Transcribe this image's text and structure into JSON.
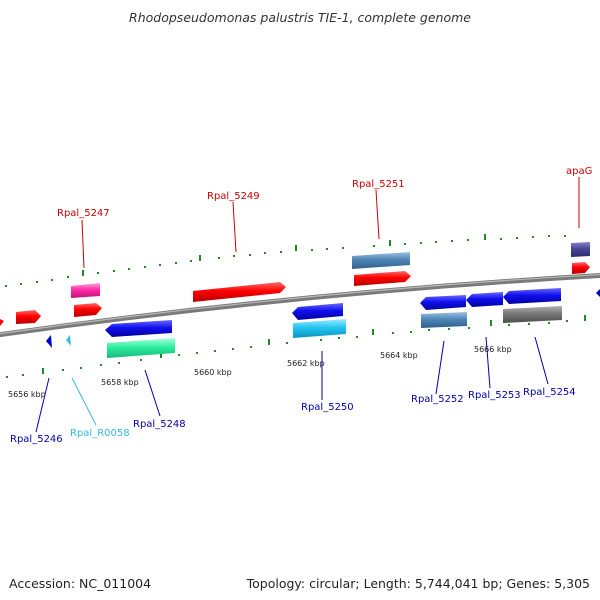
{
  "title": "Rhodopseudomonas palustris TIE-1, complete genome",
  "accession": "Accession: NC_011004",
  "summary": "Topology: circular; Length: 5,744,041 bp; Genes: 5,305",
  "scale_labels": [
    "5656 kbp",
    "5658 kbp",
    "5660 kbp",
    "5662 kbp",
    "5664 kbp",
    "5666 kbp"
  ],
  "gene_labels": {
    "rpal_5247": "Rpal_5247",
    "rpal_5249": "Rpal_5249",
    "rpal_5251": "Rpal_5251",
    "apag": "apaG",
    "rpal_5246": "Rpal_5246",
    "rpal_r0058": "Rpal_R0058",
    "rpal_5248": "Rpal_5248",
    "rpal_5250": "Rpal_5250",
    "rpal_5252": "Rpal_5252",
    "rpal_5253": "Rpal_5253",
    "rpal_5254": "Rpal_5254"
  },
  "colors": {
    "forward_label": "#cc0000",
    "reverse_label": "#0000aa",
    "rna_label": "#33bbdd",
    "backbone": "#808080",
    "ticks": "#228822"
  }
}
